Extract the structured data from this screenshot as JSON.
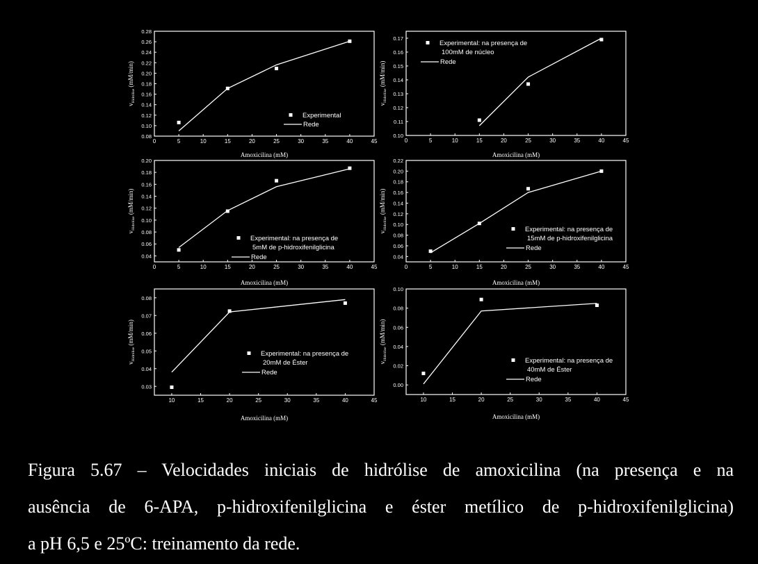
{
  "chart_data": [
    {
      "type": "scatter-line",
      "xlabel": "Amoxicilina (mM)",
      "ylabel": "v_Hidrólise (mM/min)",
      "xlim": [
        0,
        45
      ],
      "ylim": [
        0.08,
        0.28
      ],
      "xticks": [
        "0",
        "5",
        "10",
        "15",
        "20",
        "25",
        "30",
        "35",
        "40",
        "45"
      ],
      "yticks": [
        "0.08",
        "0.10",
        "0.12",
        "0.14",
        "0.16",
        "0.18",
        "0.20",
        "0.22",
        "0.24",
        "0.26",
        "0.28"
      ],
      "legend": [
        "Experimental",
        "Rede"
      ],
      "experimental": {
        "x": [
          5,
          15,
          25,
          40
        ],
        "y": [
          0.106,
          0.171,
          0.209,
          0.261
        ]
      },
      "rede": {
        "x": [
          5,
          15,
          25,
          40
        ],
        "y": [
          0.09,
          0.171,
          0.216,
          0.261
        ]
      }
    },
    {
      "type": "scatter-line",
      "xlabel": "Amoxicilina (mM)",
      "ylabel": "v_Hidrólise (mM/min)",
      "xlim": [
        0,
        45
      ],
      "ylim": [
        0.1,
        0.175
      ],
      "xticks": [
        "0",
        "5",
        "10",
        "15",
        "20",
        "25",
        "30",
        "35",
        "40",
        "45"
      ],
      "yticks": [
        "0.10",
        "0.11",
        "0.12",
        "0.13",
        "0.14",
        "0.15",
        "0.16",
        "0.17"
      ],
      "legend": [
        "Experimental: na presença de",
        "100mM de núcleo",
        "Rede"
      ],
      "experimental": {
        "x": [
          15,
          25,
          40
        ],
        "y": [
          0.111,
          0.137,
          0.169
        ]
      },
      "rede": {
        "x": [
          15,
          25,
          40
        ],
        "y": [
          0.107,
          0.142,
          0.17
        ]
      }
    },
    {
      "type": "scatter-line",
      "xlabel": "Amoxicilina (mM)",
      "ylabel": "v_Hidrólise (mM/min)",
      "xlim": [
        0,
        45
      ],
      "ylim": [
        0.03,
        0.2
      ],
      "xticks": [
        "0",
        "5",
        "10",
        "15",
        "20",
        "25",
        "30",
        "35",
        "40",
        "45"
      ],
      "yticks": [
        "0.04",
        "0.06",
        "0.08",
        "0.10",
        "0.12",
        "0.14",
        "0.16",
        "0.18",
        "0.20"
      ],
      "legend": [
        "Experimental: na presença de",
        "5mM de p-hidroxifenilglicina",
        "Rede"
      ],
      "experimental": {
        "x": [
          5,
          15,
          25,
          40
        ],
        "y": [
          0.05,
          0.115,
          0.166,
          0.187
        ]
      },
      "rede": {
        "x": [
          5,
          15,
          25,
          40
        ],
        "y": [
          0.054,
          0.116,
          0.156,
          0.186
        ]
      }
    },
    {
      "type": "scatter-line",
      "xlabel": "Amoxicilina (mM)",
      "ylabel": "v_Hidrólise (mM/min)",
      "xlim": [
        0,
        45
      ],
      "ylim": [
        0.03,
        0.22
      ],
      "xticks": [
        "0",
        "5",
        "10",
        "15",
        "20",
        "25",
        "30",
        "35",
        "40",
        "45"
      ],
      "yticks": [
        "0.04",
        "0.06",
        "0.08",
        "0.10",
        "0.12",
        "0.14",
        "0.16",
        "0.18",
        "0.20",
        "0.22"
      ],
      "legend": [
        "Experimental: na presença de",
        "15mM de p-hidroxifenilglicina",
        "Rede"
      ],
      "experimental": {
        "x": [
          5,
          15,
          25,
          40
        ],
        "y": [
          0.05,
          0.102,
          0.167,
          0.2
        ]
      },
      "rede": {
        "x": [
          5,
          15,
          25,
          40
        ],
        "y": [
          0.047,
          0.102,
          0.16,
          0.2
        ]
      }
    },
    {
      "type": "scatter-line",
      "xlabel": "Amoxicilina (mM)",
      "ylabel": "v_Hidrólise (mM/min)",
      "xlim": [
        7,
        45
      ],
      "ylim": [
        0.025,
        0.085
      ],
      "xticks": [
        "10",
        "15",
        "20",
        "25",
        "30",
        "35",
        "40",
        "45"
      ],
      "yticks": [
        "0.03",
        "0.04",
        "0.05",
        "0.06",
        "0.07",
        "0.08"
      ],
      "legend": [
        "Experimental: na presença de",
        "20mM de Éster",
        "Rede"
      ],
      "experimental": {
        "x": [
          10,
          20,
          40
        ],
        "y": [
          0.0295,
          0.0725,
          0.077
        ]
      },
      "rede": {
        "x": [
          10,
          20,
          40
        ],
        "y": [
          0.038,
          0.072,
          0.079
        ]
      }
    },
    {
      "type": "scatter-line",
      "xlabel": "Amoxicilina (mM)",
      "ylabel": "v_Hidrólise (mM/min)",
      "xlim": [
        7,
        45
      ],
      "ylim": [
        -0.01,
        0.1
      ],
      "xticks": [
        "10",
        "15",
        "20",
        "25",
        "30",
        "35",
        "40",
        "45"
      ],
      "yticks": [
        "0.00",
        "0.02",
        "0.04",
        "0.06",
        "0.08",
        "0.10"
      ],
      "legend": [
        "Experimental: na presença de",
        "40mM de Éster",
        "Rede"
      ],
      "experimental": {
        "x": [
          10,
          20,
          40
        ],
        "y": [
          0.012,
          0.089,
          0.083
        ]
      },
      "rede": {
        "x": [
          10,
          20,
          40
        ],
        "y": [
          0.001,
          0.077,
          0.085
        ]
      }
    }
  ],
  "caption": {
    "line1": "Figura 5.67 – Velocidades iniciais de hidrólise de amoxicilina (na presença e na",
    "line2": "ausência de 6-APA, p-hidroxifenilglicina e éster metílico de p-hidroxifenilglicina)",
    "line3": "a pH 6,5 e 25ºC: treinamento da rede."
  }
}
